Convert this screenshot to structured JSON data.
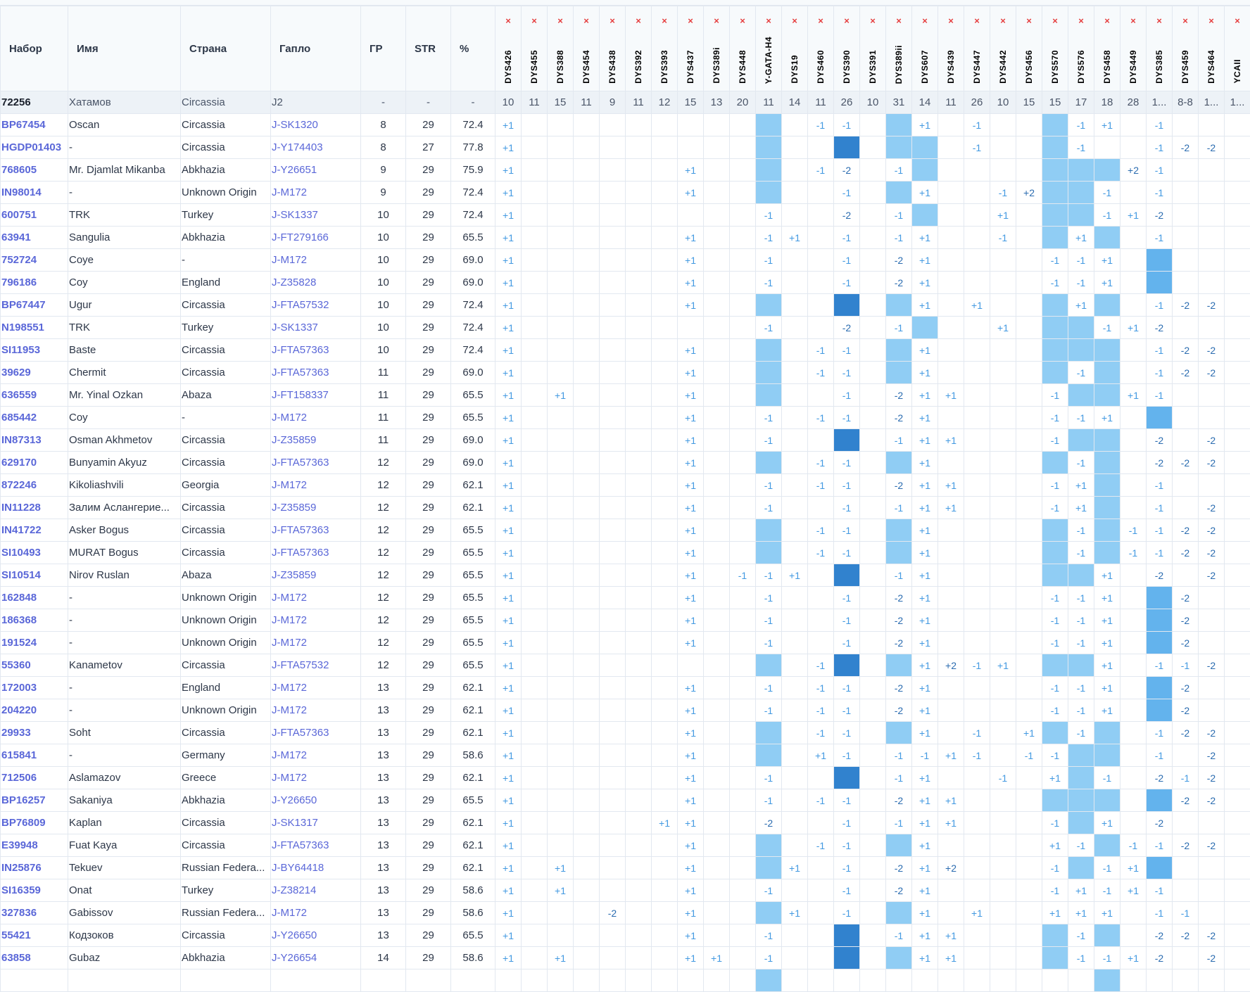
{
  "colors": {
    "light": "#90cdf4",
    "dark": "#3182ce",
    "medium": "#63b3ed",
    "link": "#5a67d8",
    "remove": "#e53e3e"
  },
  "columns": {
    "kit": "Набор",
    "name": "Имя",
    "country": "Страна",
    "haplo": "Гапло",
    "gd": "ГР",
    "str": "STR",
    "pct": "%"
  },
  "remove_icon": "×",
  "markers": [
    "DYS426",
    "DYS455",
    "DYS388",
    "DYS454",
    "DYS438",
    "DYS392",
    "DYS393",
    "DYS437",
    "DYS389i",
    "DYS448",
    "Y-GATA-H4",
    "DYS19",
    "DYS460",
    "DYS390",
    "DYS391",
    "DYS389ii",
    "DYS607",
    "DYS439",
    "DYS447",
    "DYS442",
    "DYS456",
    "DYS570",
    "DYS576",
    "DYS458",
    "DYS449",
    "DYS385",
    "DYS459",
    "DYS464",
    "YCAII"
  ],
  "reference": {
    "kit": "72256",
    "name": "Хатамов",
    "country": "Circassia",
    "haplo": "J2",
    "gd": "-",
    "str": "-",
    "pct": "-",
    "values": [
      "10",
      "11",
      "15",
      "11",
      "9",
      "11",
      "12",
      "15",
      "13",
      "20",
      "11",
      "14",
      "11",
      "26",
      "10",
      "31",
      "14",
      "11",
      "26",
      "10",
      "15",
      "15",
      "17",
      "18",
      "28",
      "1...",
      "8-8",
      "1...",
      "1..."
    ]
  },
  "legend": {
    "L": "light",
    "D": "dark",
    "M": "medium"
  },
  "rows": [
    {
      "kit": "BP67454",
      "name": "Oscan",
      "country": "Circassia",
      "haplo": "J-SK1320",
      "gd": "8",
      "str": "29",
      "pct": "72.4",
      "d": {
        "0": "+1",
        "10": "L",
        "12": "-1",
        "13": "-1",
        "15": "L",
        "16": "+1",
        "18": "-1",
        "21": "L",
        "22": "-1",
        "23": "+1",
        "25": "-1"
      }
    },
    {
      "kit": "HGDP01403",
      "name": "-",
      "country": "Circassia",
      "haplo": "J-Y174403",
      "gd": "8",
      "str": "27",
      "pct": "77.8",
      "d": {
        "0": "+1",
        "10": "L",
        "13": "D",
        "15": "L",
        "16": "L",
        "18": "-1",
        "21": "L",
        "22": "-1",
        "25": "-1",
        "26": "-2",
        "27": "-2"
      }
    },
    {
      "kit": "768605",
      "name": "Mr. Djamlat Mikanba",
      "country": "Abkhazia",
      "haplo": "J-Y26651",
      "gd": "9",
      "str": "29",
      "pct": "75.9",
      "d": {
        "0": "+1",
        "7": "+1",
        "10": "L",
        "12": "-1",
        "13": "-2",
        "15": "-1",
        "16": "L",
        "21": "L",
        "22": "L",
        "23": "L",
        "24": "+2",
        "25": "-1"
      }
    },
    {
      "kit": "IN98014",
      "name": "-",
      "country": "Unknown Origin",
      "haplo": "J-M172",
      "gd": "9",
      "str": "29",
      "pct": "72.4",
      "d": {
        "0": "+1",
        "7": "+1",
        "10": "L",
        "13": "-1",
        "15": "L",
        "16": "+1",
        "19": "-1",
        "20": "+2",
        "21": "L",
        "22": "L",
        "23": "-1",
        "25": "-1"
      }
    },
    {
      "kit": "600751",
      "name": "TRK",
      "country": "Turkey",
      "haplo": "J-SK1337",
      "gd": "10",
      "str": "29",
      "pct": "72.4",
      "d": {
        "0": "+1",
        "10": "-1",
        "13": "-2",
        "15": "-1",
        "16": "L",
        "19": "+1",
        "21": "L",
        "22": "L",
        "23": "-1",
        "24": "+1",
        "25": "-2"
      }
    },
    {
      "kit": "63941",
      "name": "Sangulia",
      "country": "Abkhazia",
      "haplo": "J-FT279166",
      "gd": "10",
      "str": "29",
      "pct": "65.5",
      "d": {
        "0": "+1",
        "7": "+1",
        "10": "-1",
        "11": "+1",
        "13": "-1",
        "15": "-1",
        "16": "+1",
        "19": "-1",
        "21": "L",
        "22": "+1",
        "23": "L",
        "25": "-1"
      }
    },
    {
      "kit": "752724",
      "name": "Coye",
      "country": "-",
      "haplo": "J-M172",
      "gd": "10",
      "str": "29",
      "pct": "69.0",
      "d": {
        "0": "+1",
        "7": "+1",
        "10": "-1",
        "13": "-1",
        "15": "-2",
        "16": "+1",
        "21": "-1",
        "22": "-1",
        "23": "+1",
        "25": "M"
      }
    },
    {
      "kit": "796186",
      "name": "Coy",
      "country": "England",
      "haplo": "J-Z35828",
      "gd": "10",
      "str": "29",
      "pct": "69.0",
      "d": {
        "0": "+1",
        "7": "+1",
        "10": "-1",
        "13": "-1",
        "15": "-2",
        "16": "+1",
        "21": "-1",
        "22": "-1",
        "23": "+1",
        "25": "M"
      }
    },
    {
      "kit": "BP67447",
      "name": "Ugur",
      "country": "Circassia",
      "haplo": "J-FTA57532",
      "gd": "10",
      "str": "29",
      "pct": "72.4",
      "d": {
        "0": "+1",
        "7": "+1",
        "10": "L",
        "13": "D",
        "15": "L",
        "16": "+1",
        "18": "+1",
        "21": "L",
        "22": "+1",
        "23": "L",
        "25": "-1",
        "26": "-2",
        "27": "-2"
      }
    },
    {
      "kit": "N198551",
      "name": "TRK",
      "country": "Turkey",
      "haplo": "J-SK1337",
      "gd": "10",
      "str": "29",
      "pct": "72.4",
      "d": {
        "0": "+1",
        "10": "-1",
        "13": "-2",
        "15": "-1",
        "16": "L",
        "19": "+1",
        "21": "L",
        "22": "L",
        "23": "-1",
        "24": "+1",
        "25": "-2"
      }
    },
    {
      "kit": "SI11953",
      "name": "Baste",
      "country": "Circassia",
      "haplo": "J-FTA57363",
      "gd": "10",
      "str": "29",
      "pct": "72.4",
      "d": {
        "0": "+1",
        "7": "+1",
        "10": "L",
        "12": "-1",
        "13": "-1",
        "15": "L",
        "16": "+1",
        "21": "L",
        "22": "L",
        "23": "L",
        "25": "-1",
        "26": "-2",
        "27": "-2"
      }
    },
    {
      "kit": "39629",
      "name": "Chermit",
      "country": "Circassia",
      "haplo": "J-FTA57363",
      "gd": "11",
      "str": "29",
      "pct": "69.0",
      "d": {
        "0": "+1",
        "7": "+1",
        "10": "L",
        "12": "-1",
        "13": "-1",
        "15": "L",
        "16": "+1",
        "21": "L",
        "22": "-1",
        "23": "L",
        "25": "-1",
        "26": "-2",
        "27": "-2"
      }
    },
    {
      "kit": "636559",
      "name": "Mr. Yinal Ozkan",
      "country": "Abaza",
      "haplo": "J-FT158337",
      "gd": "11",
      "str": "29",
      "pct": "65.5",
      "d": {
        "0": "+1",
        "2": "+1",
        "7": "+1",
        "10": "L",
        "13": "-1",
        "15": "-2",
        "16": "+1",
        "17": "+1",
        "21": "-1",
        "22": "L",
        "23": "L",
        "24": "+1",
        "25": "-1"
      }
    },
    {
      "kit": "685442",
      "name": "Coy",
      "country": "-",
      "haplo": "J-M172",
      "gd": "11",
      "str": "29",
      "pct": "65.5",
      "d": {
        "0": "+1",
        "7": "+1",
        "10": "-1",
        "12": "-1",
        "13": "-1",
        "15": "-2",
        "16": "+1",
        "21": "-1",
        "22": "-1",
        "23": "+1",
        "25": "M"
      }
    },
    {
      "kit": "IN87313",
      "name": "Osman Akhmetov",
      "country": "Circassia",
      "haplo": "J-Z35859",
      "gd": "11",
      "str": "29",
      "pct": "69.0",
      "d": {
        "0": "+1",
        "7": "+1",
        "10": "-1",
        "13": "D",
        "15": "-1",
        "16": "+1",
        "17": "+1",
        "21": "-1",
        "22": "L",
        "23": "L",
        "25": "-2",
        "27": "-2"
      }
    },
    {
      "kit": "629170",
      "name": "Bunyamin Akyuz",
      "country": "Circassia",
      "haplo": "J-FTA57363",
      "gd": "12",
      "str": "29",
      "pct": "69.0",
      "d": {
        "0": "+1",
        "7": "+1",
        "10": "L",
        "12": "-1",
        "13": "-1",
        "15": "L",
        "16": "+1",
        "21": "L",
        "22": "-1",
        "23": "L",
        "25": "-2",
        "26": "-2",
        "27": "-2"
      }
    },
    {
      "kit": "872246",
      "name": "Kikoliashvili",
      "country": "Georgia",
      "haplo": "J-M172",
      "gd": "12",
      "str": "29",
      "pct": "62.1",
      "d": {
        "0": "+1",
        "7": "+1",
        "10": "-1",
        "12": "-1",
        "13": "-1",
        "15": "-2",
        "16": "+1",
        "17": "+1",
        "21": "-1",
        "22": "+1",
        "23": "L",
        "25": "-1"
      }
    },
    {
      "kit": "IN11228",
      "name": "Залим Аслангерие...",
      "country": "Circassia",
      "haplo": "J-Z35859",
      "gd": "12",
      "str": "29",
      "pct": "62.1",
      "d": {
        "0": "+1",
        "7": "+1",
        "10": "-1",
        "13": "-1",
        "15": "-1",
        "16": "+1",
        "17": "+1",
        "21": "-1",
        "22": "+1",
        "23": "L",
        "25": "-1",
        "27": "-2"
      }
    },
    {
      "kit": "IN41722",
      "name": "Asker Bogus",
      "country": "Circassia",
      "haplo": "J-FTA57363",
      "gd": "12",
      "str": "29",
      "pct": "65.5",
      "d": {
        "0": "+1",
        "7": "+1",
        "10": "L",
        "12": "-1",
        "13": "-1",
        "15": "L",
        "16": "+1",
        "21": "L",
        "22": "-1",
        "23": "L",
        "24": "-1",
        "25": "-1",
        "26": "-2",
        "27": "-2"
      }
    },
    {
      "kit": "SI10493",
      "name": "MURAT Bogus",
      "country": "Circassia",
      "haplo": "J-FTA57363",
      "gd": "12",
      "str": "29",
      "pct": "65.5",
      "d": {
        "0": "+1",
        "7": "+1",
        "10": "L",
        "12": "-1",
        "13": "-1",
        "15": "L",
        "16": "+1",
        "21": "L",
        "22": "-1",
        "23": "L",
        "24": "-1",
        "25": "-1",
        "26": "-2",
        "27": "-2"
      }
    },
    {
      "kit": "SI10514",
      "name": "Nirov Ruslan",
      "country": "Abaza",
      "haplo": "J-Z35859",
      "gd": "12",
      "str": "29",
      "pct": "65.5",
      "d": {
        "0": "+1",
        "7": "+1",
        "9": "-1",
        "10": "-1",
        "11": "+1",
        "13": "D",
        "15": "-1",
        "16": "+1",
        "21": "L",
        "22": "L",
        "23": "+1",
        "25": "-2",
        "27": "-2"
      }
    },
    {
      "kit": "162848",
      "name": "-",
      "country": "Unknown Origin",
      "haplo": "J-M172",
      "gd": "12",
      "str": "29",
      "pct": "65.5",
      "d": {
        "0": "+1",
        "7": "+1",
        "10": "-1",
        "13": "-1",
        "15": "-2",
        "16": "+1",
        "21": "-1",
        "22": "-1",
        "23": "+1",
        "25": "M",
        "26": "-2"
      }
    },
    {
      "kit": "186368",
      "name": "-",
      "country": "Unknown Origin",
      "haplo": "J-M172",
      "gd": "12",
      "str": "29",
      "pct": "65.5",
      "d": {
        "0": "+1",
        "7": "+1",
        "10": "-1",
        "13": "-1",
        "15": "-2",
        "16": "+1",
        "21": "-1",
        "22": "-1",
        "23": "+1",
        "25": "M",
        "26": "-2"
      }
    },
    {
      "kit": "191524",
      "name": "-",
      "country": "Unknown Origin",
      "haplo": "J-M172",
      "gd": "12",
      "str": "29",
      "pct": "65.5",
      "d": {
        "0": "+1",
        "7": "+1",
        "10": "-1",
        "13": "-1",
        "15": "-2",
        "16": "+1",
        "21": "-1",
        "22": "-1",
        "23": "+1",
        "25": "M",
        "26": "-2"
      }
    },
    {
      "kit": "55360",
      "name": "Kanametov",
      "country": "Circassia",
      "haplo": "J-FTA57532",
      "gd": "12",
      "str": "29",
      "pct": "65.5",
      "d": {
        "0": "+1",
        "10": "L",
        "12": "-1",
        "13": "D",
        "15": "L",
        "16": "+1",
        "17": "+2",
        "18": "-1",
        "19": "+1",
        "21": "L",
        "22": "L",
        "23": "+1",
        "25": "-1",
        "26": "-1",
        "27": "-2"
      }
    },
    {
      "kit": "172003",
      "name": "-",
      "country": "England",
      "haplo": "J-M172",
      "gd": "13",
      "str": "29",
      "pct": "62.1",
      "d": {
        "0": "+1",
        "7": "+1",
        "10": "-1",
        "12": "-1",
        "13": "-1",
        "15": "-2",
        "16": "+1",
        "21": "-1",
        "22": "-1",
        "23": "+1",
        "25": "M",
        "26": "-2"
      }
    },
    {
      "kit": "204220",
      "name": "-",
      "country": "Unknown Origin",
      "haplo": "J-M172",
      "gd": "13",
      "str": "29",
      "pct": "62.1",
      "d": {
        "0": "+1",
        "7": "+1",
        "10": "-1",
        "12": "-1",
        "13": "-1",
        "15": "-2",
        "16": "+1",
        "21": "-1",
        "22": "-1",
        "23": "+1",
        "25": "M",
        "26": "-2"
      }
    },
    {
      "kit": "29933",
      "name": "Soht",
      "country": "Circassia",
      "haplo": "J-FTA57363",
      "gd": "13",
      "str": "29",
      "pct": "62.1",
      "d": {
        "0": "+1",
        "7": "+1",
        "10": "L",
        "12": "-1",
        "13": "-1",
        "15": "L",
        "16": "+1",
        "18": "-1",
        "20": "+1",
        "21": "L",
        "22": "-1",
        "23": "L",
        "25": "-1",
        "26": "-2",
        "27": "-2"
      }
    },
    {
      "kit": "615841",
      "name": "-",
      "country": "Germany",
      "haplo": "J-M172",
      "gd": "13",
      "str": "29",
      "pct": "58.6",
      "d": {
        "0": "+1",
        "7": "+1",
        "10": "L",
        "12": "+1",
        "13": "-1",
        "15": "-1",
        "16": "-1",
        "17": "+1",
        "18": "-1",
        "20": "-1",
        "21": "-1",
        "22": "L",
        "23": "L",
        "25": "-1",
        "27": "-2"
      }
    },
    {
      "kit": "712506",
      "name": "Aslamazov",
      "country": "Greece",
      "haplo": "J-M172",
      "gd": "13",
      "str": "29",
      "pct": "62.1",
      "d": {
        "0": "+1",
        "7": "+1",
        "10": "-1",
        "13": "D",
        "15": "-1",
        "16": "+1",
        "19": "-1",
        "21": "+1",
        "22": "L",
        "23": "-1",
        "25": "-2",
        "26": "-1",
        "27": "-2"
      }
    },
    {
      "kit": "BP16257",
      "name": "Sakaniya",
      "country": "Abkhazia",
      "haplo": "J-Y26650",
      "gd": "13",
      "str": "29",
      "pct": "65.5",
      "d": {
        "0": "+1",
        "7": "+1",
        "10": "-1",
        "12": "-1",
        "13": "-1",
        "15": "-2",
        "16": "+1",
        "17": "+1",
        "21": "L",
        "22": "L",
        "23": "L",
        "25": "M",
        "26": "-2",
        "27": "-2"
      }
    },
    {
      "kit": "BP76809",
      "name": "Kaplan",
      "country": "Circassia",
      "haplo": "J-SK1317",
      "gd": "13",
      "str": "29",
      "pct": "62.1",
      "d": {
        "0": "+1",
        "6": "+1",
        "7": "+1",
        "10": "-2",
        "13": "-1",
        "15": "-1",
        "16": "+1",
        "17": "+1",
        "21": "-1",
        "22": "L",
        "23": "+1",
        "25": "-2"
      }
    },
    {
      "kit": "E39948",
      "name": "Fuat Kaya",
      "country": "Circassia",
      "haplo": "J-FTA57363",
      "gd": "13",
      "str": "29",
      "pct": "62.1",
      "d": {
        "0": "+1",
        "7": "+1",
        "10": "L",
        "12": "-1",
        "13": "-1",
        "15": "L",
        "16": "+1",
        "21": "+1",
        "22": "-1",
        "23": "L",
        "24": "-1",
        "25": "-1",
        "26": "-2",
        "27": "-2"
      }
    },
    {
      "kit": "IN25876",
      "name": "Tekuev",
      "country": "Russian Federa...",
      "haplo": "J-BY64418",
      "gd": "13",
      "str": "29",
      "pct": "62.1",
      "d": {
        "0": "+1",
        "2": "+1",
        "7": "+1",
        "10": "L",
        "11": "+1",
        "13": "-1",
        "15": "-2",
        "16": "+1",
        "17": "+2",
        "21": "-1",
        "22": "L",
        "23": "-1",
        "24": "+1",
        "25": "M"
      }
    },
    {
      "kit": "SI16359",
      "name": "Onat",
      "country": "Turkey",
      "haplo": "J-Z38214",
      "gd": "13",
      "str": "29",
      "pct": "58.6",
      "d": {
        "0": "+1",
        "2": "+1",
        "7": "+1",
        "10": "-1",
        "13": "-1",
        "15": "-2",
        "16": "+1",
        "21": "-1",
        "22": "+1",
        "23": "-1",
        "24": "+1",
        "25": "-1"
      }
    },
    {
      "kit": "327836",
      "name": "Gabissov",
      "country": "Russian Federa...",
      "haplo": "J-M172",
      "gd": "13",
      "str": "29",
      "pct": "58.6",
      "d": {
        "0": "+1",
        "4": "-2",
        "7": "+1",
        "10": "L",
        "11": "+1",
        "13": "-1",
        "15": "L",
        "16": "+1",
        "18": "+1",
        "21": "+1",
        "22": "+1",
        "23": "+1",
        "25": "-1",
        "26": "-1"
      }
    },
    {
      "kit": "55421",
      "name": "Кодзоков",
      "country": "Circassia",
      "haplo": "J-Y26650",
      "gd": "13",
      "str": "29",
      "pct": "65.5",
      "d": {
        "0": "+1",
        "7": "+1",
        "10": "-1",
        "13": "D",
        "15": "-1",
        "16": "+1",
        "17": "+1",
        "21": "L",
        "22": "-1",
        "23": "L",
        "25": "-2",
        "26": "-2",
        "27": "-2"
      }
    },
    {
      "kit": "63858",
      "name": "Gubaz",
      "country": "Abkhazia",
      "haplo": "J-Y26654",
      "gd": "14",
      "str": "29",
      "pct": "58.6",
      "d": {
        "0": "+1",
        "2": "+1",
        "7": "+1",
        "8": "+1",
        "10": "-1",
        "13": "D",
        "15": "L",
        "16": "+1",
        "17": "+1",
        "21": "L",
        "22": "-1",
        "23": "-1",
        "24": "+1",
        "25": "-2",
        "27": "-2"
      }
    },
    {
      "d": {
        "10": "L",
        "23": "L"
      }
    }
  ]
}
